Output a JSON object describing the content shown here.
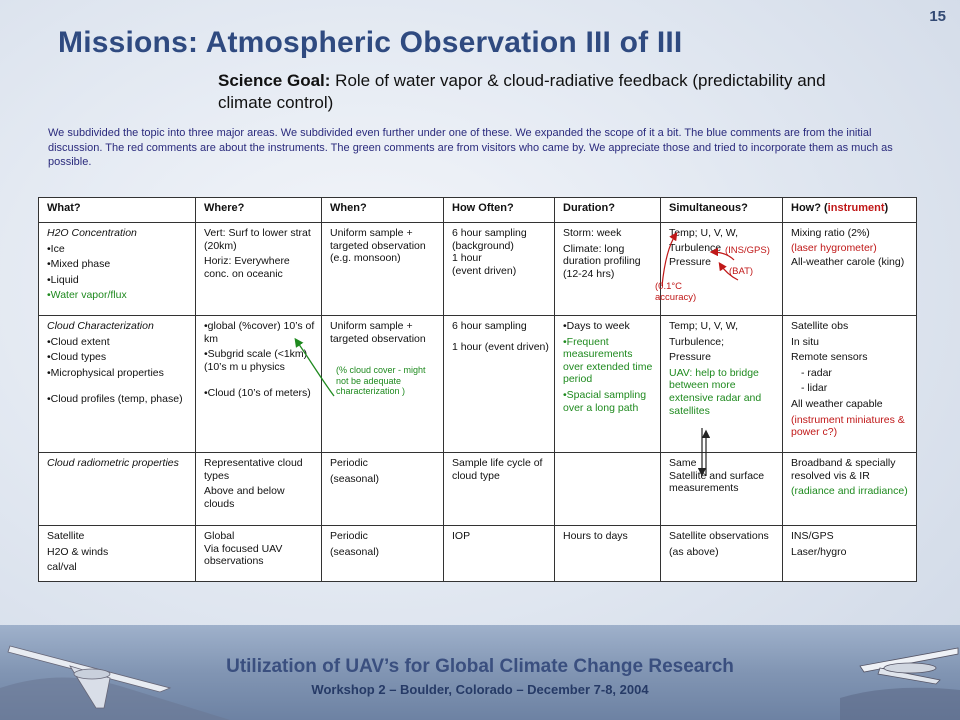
{
  "page_number": "15",
  "title": "Missions: Atmospheric Observation III of III",
  "science_goal": {
    "label": "Science Goal:",
    "text": " Role of water vapor & cloud-radiative feedback (predictability and climate control)"
  },
  "intro": "We subdivided the topic into three major areas. We subdivided even further under one of these. We expanded the scope of it a bit. The blue comments are from the initial discussion. The red comments are about the instruments. The green comments are from visitors who came by. We appreciate those and tried to incorporate them as much as possible.",
  "table": {
    "headers": {
      "what": "What?",
      "where": "Where?",
      "when": "When?",
      "how_often": "How Often?",
      "duration": "Duration?",
      "simultaneous": "Simultaneous?",
      "how": "How? (",
      "how_red": "instrument",
      "how_end": ")"
    },
    "rows": [
      {
        "what": [
          "H2O Concentration",
          "•Ice",
          "•Mixed phase",
          "•Liquid",
          "•Water vapor/flux"
        ],
        "where": [
          "Vert: Surf to lower strat (20km)",
          "Horiz: Everywhere conc. on oceanic"
        ],
        "when": [
          "Uniform sample + targeted observation (e.g. monsoon)"
        ],
        "how_often": [
          "6 hour sampling (background)",
          "1 hour",
          "(event driven)"
        ],
        "duration": [
          "Storm:  week",
          "Climate: long duration profiling (12-24 hrs)"
        ],
        "simultaneous": [
          "Temp; U, V, W,",
          "Turbulence",
          "Pressure"
        ],
        "simultaneous_notes": [
          "(INS/GPS)",
          "(BAT)",
          "(0.1°C accuracy)"
        ],
        "how": [
          "Mixing ratio (2%)",
          "(laser hygrometer)",
          "All-weather carole (king)"
        ]
      },
      {
        "what": [
          "Cloud Characterization",
          "•Cloud extent",
          "•Cloud types",
          "•Microphysical properties",
          "•Cloud profiles (temp, phase)"
        ],
        "where": [
          "•global (%cover) 10’s of km",
          "•Subgrid scale (<1km) (10’s m u physics",
          "•Cloud (10’s of meters)"
        ],
        "when": [
          "Uniform sample + targeted observation"
        ],
        "when_note": "(% cloud cover - might not be adequate characterization )",
        "how_often": [
          "6 hour sampling",
          "1 hour (event driven)"
        ],
        "duration": [
          "•Days to week",
          "•Frequent measurements over extended time period",
          "•Spacial sampling over a long path"
        ],
        "simultaneous": [
          "Temp; U, V, W,",
          "Turbulence;",
          "Pressure",
          "UAV: help to bridge between more extensive radar and satellites"
        ],
        "how": [
          "Satellite obs",
          "In situ",
          "Remote sensors",
          "- radar",
          "- lidar",
          "All weather capable",
          "(instrument miniatures & power c?)"
        ]
      },
      {
        "what": [
          "Cloud radiometric properties"
        ],
        "where": [
          "Representative cloud types",
          "Above and below clouds"
        ],
        "when": [
          "Periodic",
          "(seasonal)"
        ],
        "how_often": [
          "Sample life cycle of cloud type"
        ],
        "duration": [],
        "simultaneous": [
          "Same",
          "Satellite and surface measurements"
        ],
        "how": [
          "Broadband & specially resolved vis & IR",
          "(radiance and irradiance)"
        ]
      },
      {
        "what": [
          "Satellite",
          "H2O & winds",
          "cal/val"
        ],
        "where": [
          "Global",
          "Via focused UAV observations"
        ],
        "when": [
          "Periodic",
          "(seasonal)"
        ],
        "how_often": [
          "IOP"
        ],
        "duration": [
          "Hours to days"
        ],
        "simultaneous": [
          "Satellite observations",
          "(as above)"
        ],
        "how": [
          "INS/GPS",
          "Laser/hygro"
        ]
      }
    ]
  },
  "footer": {
    "title": "Utilization of UAV’s for Global Climate Change Research",
    "subtitle": "Workshop 2 – Boulder, Colorado – December 7-8, 2004"
  },
  "colors": {
    "title": "#2f4a80",
    "red_comment": "#c01818",
    "green_comment": "#1f8a1f",
    "intro_blue": "#2a2a7c"
  }
}
